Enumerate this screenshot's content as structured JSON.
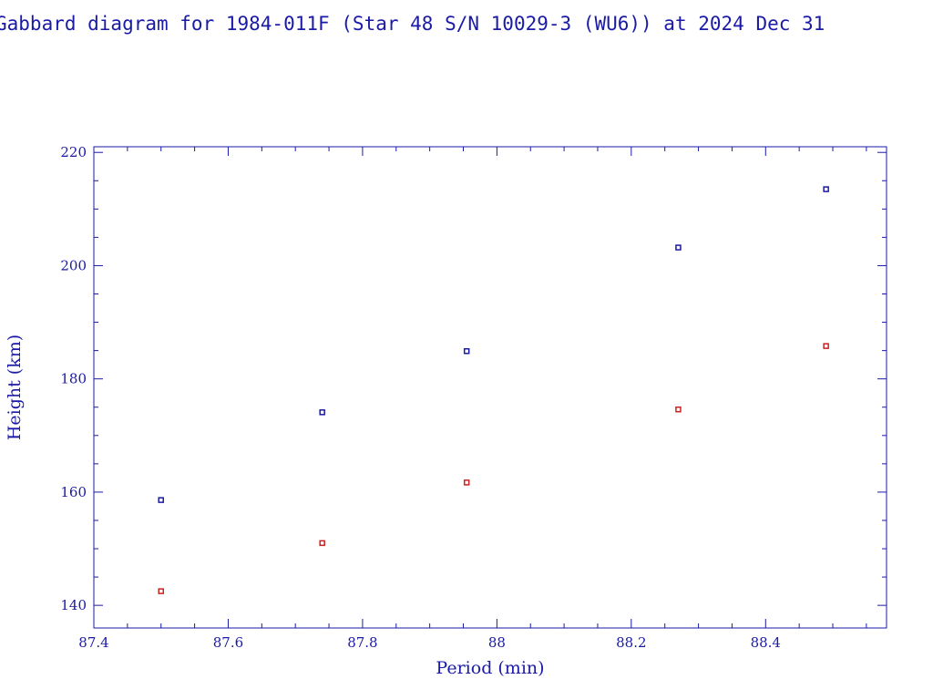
{
  "title": "Gabbard diagram for 1984-011F (Star 48 S/N 10029-3 (WU6)) at 2024 Dec 31",
  "colors": {
    "axis": "#1a1aa6",
    "apogee": "#1a1aa6",
    "perigee": "#cc2222"
  },
  "chart_data": {
    "type": "scatter",
    "title": "Gabbard diagram for 1984-011F (Star 48 S/N 10029-3 (WU6)) at 2024 Dec 31",
    "xlabel": "Period (min)",
    "ylabel": "Height (km)",
    "xlim": [
      87.4,
      88.58
    ],
    "ylim": [
      136,
      221
    ],
    "xticks": [
      87.4,
      87.6,
      87.8,
      88,
      88.2,
      88.4
    ],
    "xtick_labels": [
      "87.4",
      "87.6",
      "87.8",
      "88",
      "88.2",
      "88.4"
    ],
    "yticks": [
      140,
      160,
      180,
      200,
      220
    ],
    "ytick_labels": [
      "140",
      "160",
      "180",
      "200",
      "220"
    ],
    "grid": false,
    "series": [
      {
        "color": "#1a1aa6",
        "points": [
          {
            "x": 87.5,
            "y": 158.6
          },
          {
            "x": 87.74,
            "y": 174.1
          },
          {
            "x": 87.955,
            "y": 184.9
          },
          {
            "x": 88.27,
            "y": 203.2
          },
          {
            "x": 88.49,
            "y": 213.5
          }
        ]
      },
      {
        "color": "#cc2222",
        "points": [
          {
            "x": 87.5,
            "y": 142.5
          },
          {
            "x": 87.74,
            "y": 151.0
          },
          {
            "x": 87.955,
            "y": 161.7
          },
          {
            "x": 88.27,
            "y": 174.6
          },
          {
            "x": 88.49,
            "y": 185.8
          }
        ]
      }
    ]
  }
}
